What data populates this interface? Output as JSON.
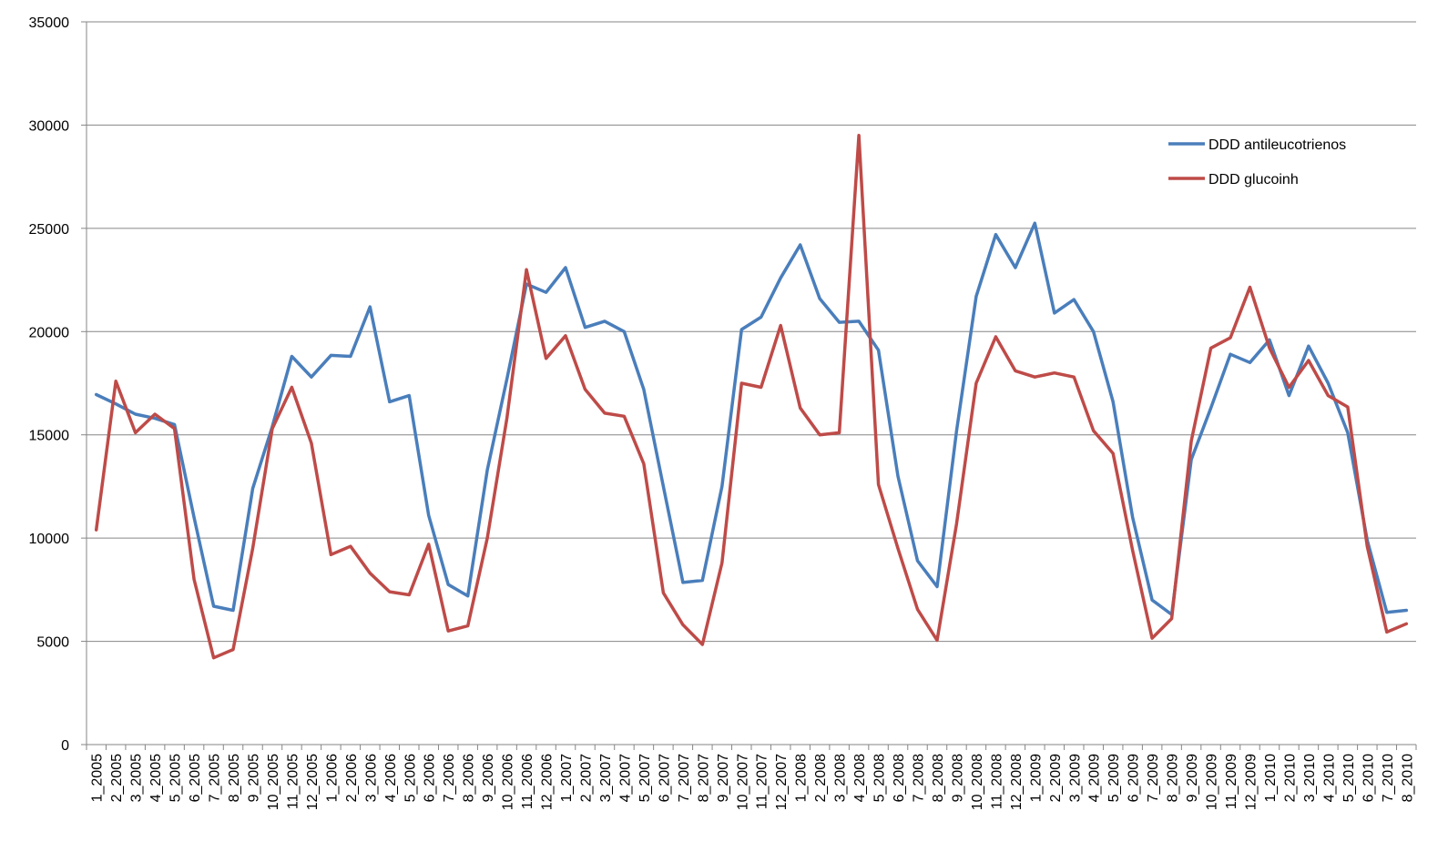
{
  "chart_data": {
    "type": "line",
    "ylim": [
      0,
      35000
    ],
    "y_ticks": [
      0,
      5000,
      10000,
      15000,
      20000,
      25000,
      30000,
      35000
    ],
    "grid": "horizontal",
    "legend_position": "top-right",
    "categories": [
      "1_2005",
      "2_2005",
      "3_2005",
      "4_2005",
      "5_2005",
      "6_2005",
      "7_2005",
      "8_2005",
      "9_2005",
      "10_2005",
      "11_2005",
      "12_2005",
      "1_2006",
      "2_2006",
      "3_2006",
      "4_2006",
      "5_2006",
      "6_2006",
      "7_2006",
      "8_2006",
      "9_2006",
      "10_2006",
      "11_2006",
      "12_2006",
      "1_2007",
      "2_2007",
      "3_2007",
      "4_2007",
      "5_2007",
      "6_2007",
      "7_2007",
      "8_2007",
      "9_2007",
      "10_2007",
      "11_2007",
      "12_2007",
      "1_2008",
      "2_2008",
      "3_2008",
      "4_2008",
      "5_2008",
      "6_2008",
      "7_2008",
      "8_2008",
      "9_2008",
      "10_2008",
      "11_2008",
      "12_2008",
      "1_2009",
      "2_2009",
      "3_2009",
      "4_2009",
      "5_2009",
      "6_2009",
      "7_2009",
      "8_2009",
      "9_2009",
      "10_2009",
      "11_2009",
      "12_2009",
      "1_2010",
      "2_2010",
      "3_2010",
      "4_2010",
      "5_2010",
      "6_2010",
      "7_2010",
      "8_2010"
    ],
    "series": [
      {
        "name": "DDD antileucotrienos",
        "color": "#4a7ebb",
        "values": [
          16950,
          16500,
          16000,
          15800,
          15500,
          11000,
          6700,
          6500,
          12400,
          15400,
          18800,
          17800,
          18850,
          18800,
          21200,
          16600,
          16900,
          11100,
          7750,
          7200,
          13300,
          17700,
          22300,
          21900,
          23100,
          20200,
          20500,
          20000,
          17200,
          12500,
          7850,
          7950,
          12500,
          20100,
          20700,
          22600,
          24200,
          21600,
          20450,
          20500,
          19100,
          13000,
          8900,
          7650,
          15200,
          21700,
          24700,
          23100,
          25250,
          20900,
          21550,
          20000,
          16600,
          11000,
          7000,
          6300,
          13800,
          16300,
          18900,
          18500,
          19600,
          16900,
          19300,
          17500,
          15100,
          9900,
          6400,
          6500
        ]
      },
      {
        "name": "DDD glucoinh",
        "color": "#be4b48",
        "values": [
          10400,
          17600,
          15100,
          16000,
          15300,
          8000,
          4200,
          4600,
          9500,
          15300,
          17300,
          14600,
          9200,
          9600,
          8300,
          7400,
          7250,
          9700,
          5500,
          5750,
          10000,
          15800,
          23000,
          18700,
          19800,
          17200,
          16050,
          15900,
          13600,
          7350,
          5800,
          4850,
          8800,
          17500,
          17300,
          20300,
          16300,
          15000,
          15100,
          29500,
          12600,
          9500,
          6550,
          5050,
          10700,
          17500,
          19750,
          18100,
          17800,
          18000,
          17800,
          15200,
          14100,
          9400,
          5150,
          6100,
          14700,
          19200,
          19700,
          22150,
          19200,
          17300,
          18600,
          16900,
          16350,
          9600,
          5450,
          5850
        ]
      }
    ]
  }
}
